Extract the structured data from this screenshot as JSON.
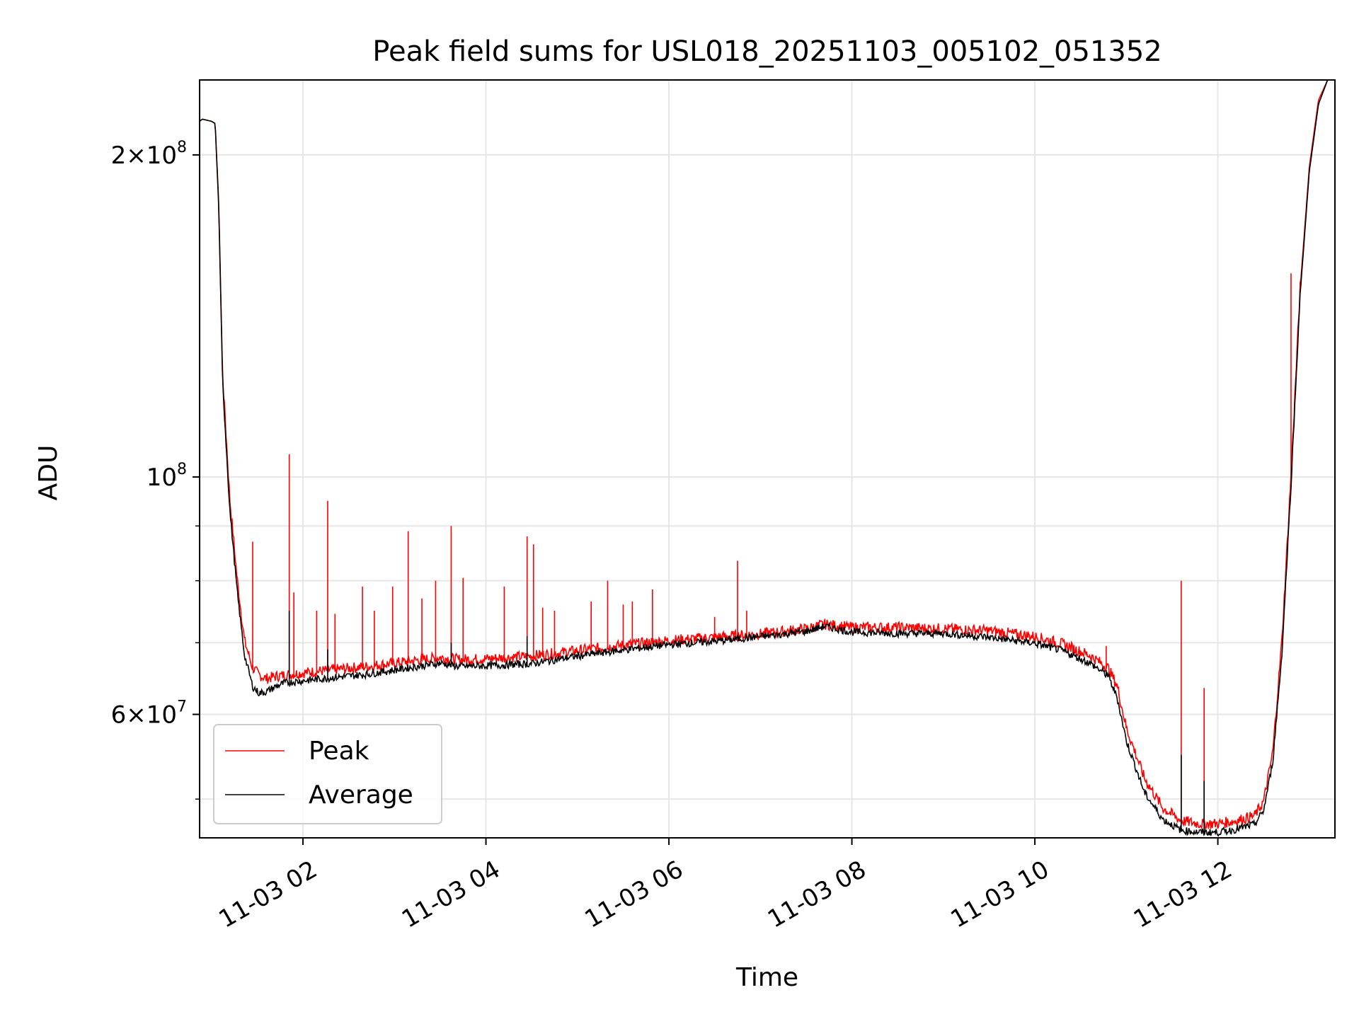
{
  "chart_data": {
    "type": "line",
    "title": "Peak field sums for USL018_20251103_005102_051352",
    "xlabel": "Time",
    "ylabel": "ADU",
    "yscale": "log",
    "xlim_hours": [
      0.87,
      13.28
    ],
    "ylim": [
      46000000,
      235000000
    ],
    "grid": true,
    "legend_location": "lower left",
    "x_ticks": [
      {
        "hour": 2,
        "label": "11-03 02"
      },
      {
        "hour": 4,
        "label": "11-03 04"
      },
      {
        "hour": 6,
        "label": "11-03 06"
      },
      {
        "hour": 8,
        "label": "11-03 08"
      },
      {
        "hour": 10,
        "label": "11-03 10"
      },
      {
        "hour": 12,
        "label": "11-03 12"
      }
    ],
    "y_major_ticks": [
      {
        "value": 200000000,
        "mantissa": "2",
        "base": "10",
        "exponent": "8"
      },
      {
        "value": 100000000,
        "mantissa": "",
        "base": "10",
        "exponent": "8"
      },
      {
        "value": 60000000,
        "mantissa": "6",
        "base": "10",
        "exponent": "7"
      }
    ],
    "y_minor_grid": [
      50000000,
      70000000,
      80000000,
      90000000
    ],
    "series": [
      {
        "name": "Peak",
        "color": "#ff0000",
        "hours": [
          0.87,
          0.9,
          1.0,
          1.04,
          1.08,
          1.12,
          1.2,
          1.28,
          1.36,
          1.45,
          1.52,
          1.6,
          1.7,
          1.8,
          2.0,
          2.3,
          2.7,
          3.0,
          3.5,
          3.7,
          4.0,
          4.5,
          5.0,
          5.5,
          6.0,
          6.5,
          7.0,
          7.5,
          7.7,
          8.0,
          8.5,
          9.0,
          9.5,
          10.0,
          10.3,
          10.6,
          10.8,
          10.9,
          11.0,
          11.2,
          11.4,
          11.6,
          11.8,
          12.0,
          12.2,
          12.4,
          12.5,
          12.6,
          12.7,
          12.8,
          12.9,
          13.0,
          13.1,
          13.2,
          13.28
        ],
        "values": [
          215000000,
          216000000,
          215000000,
          214000000,
          180000000,
          125000000,
          95000000,
          80000000,
          70000000,
          66000000,
          65000000,
          64500000,
          64800000,
          65000000,
          65300000,
          65700000,
          66200000,
          66700000,
          67500000,
          67200000,
          67300000,
          67700000,
          68500000,
          69300000,
          70000000,
          70500000,
          71000000,
          71800000,
          72500000,
          72000000,
          72000000,
          71800000,
          71500000,
          70600000,
          69500000,
          67800000,
          66000000,
          63500000,
          58000000,
          52000000,
          48800000,
          47500000,
          47200000,
          47200000,
          47500000,
          48000000,
          49500000,
          55000000,
          70000000,
          100000000,
          150000000,
          195000000,
          225000000,
          235000000,
          235000000
        ],
        "spikes": [
          {
            "hour": 1.45,
            "value": 87000000
          },
          {
            "hour": 1.85,
            "value": 105000000
          },
          {
            "hour": 1.9,
            "value": 78000000
          },
          {
            "hour": 2.15,
            "value": 75000000
          },
          {
            "hour": 2.27,
            "value": 95000000
          },
          {
            "hour": 2.35,
            "value": 74500000
          },
          {
            "hour": 2.65,
            "value": 79000000
          },
          {
            "hour": 2.78,
            "value": 75000000
          },
          {
            "hour": 2.98,
            "value": 79000000
          },
          {
            "hour": 3.15,
            "value": 89000000
          },
          {
            "hour": 3.3,
            "value": 77000000
          },
          {
            "hour": 3.45,
            "value": 80000000
          },
          {
            "hour": 3.62,
            "value": 90000000
          },
          {
            "hour": 3.75,
            "value": 80500000
          },
          {
            "hour": 4.2,
            "value": 79000000
          },
          {
            "hour": 4.45,
            "value": 88000000
          },
          {
            "hour": 4.52,
            "value": 86500000
          },
          {
            "hour": 4.62,
            "value": 75500000
          },
          {
            "hour": 4.75,
            "value": 75000000
          },
          {
            "hour": 5.15,
            "value": 76500000
          },
          {
            "hour": 5.33,
            "value": 80000000
          },
          {
            "hour": 5.5,
            "value": 76000000
          },
          {
            "hour": 5.6,
            "value": 76500000
          },
          {
            "hour": 5.82,
            "value": 78500000
          },
          {
            "hour": 6.5,
            "value": 74000000
          },
          {
            "hour": 6.75,
            "value": 83500000
          },
          {
            "hour": 6.85,
            "value": 75000000
          },
          {
            "hour": 10.78,
            "value": 69500000
          },
          {
            "hour": 11.6,
            "value": 80000000
          },
          {
            "hour": 11.85,
            "value": 63500000
          },
          {
            "hour": 12.8,
            "value": 155000000
          }
        ]
      },
      {
        "name": "Average",
        "color": "#000000",
        "hours": [
          0.87,
          0.9,
          1.0,
          1.04,
          1.08,
          1.12,
          1.2,
          1.28,
          1.36,
          1.45,
          1.52,
          1.6,
          1.7,
          1.8,
          2.0,
          2.3,
          2.7,
          3.0,
          3.5,
          3.7,
          4.0,
          4.5,
          5.0,
          5.5,
          6.0,
          6.5,
          7.0,
          7.5,
          7.7,
          8.0,
          8.5,
          9.0,
          9.5,
          10.0,
          10.3,
          10.6,
          10.8,
          10.9,
          11.0,
          11.2,
          11.4,
          11.6,
          11.8,
          12.0,
          12.2,
          12.4,
          12.5,
          12.6,
          12.7,
          12.8,
          12.9,
          13.0,
          13.1,
          13.2,
          13.28
        ],
        "values": [
          215000000,
          216000000,
          215000000,
          214000000,
          178000000,
          123000000,
          93000000,
          78000000,
          68000000,
          63500000,
          62600000,
          62800000,
          63500000,
          64000000,
          64300000,
          64700000,
          65200000,
          65800000,
          66800000,
          66300000,
          66400000,
          66700000,
          67800000,
          68700000,
          69500000,
          70000000,
          70700000,
          71500000,
          72300000,
          71400000,
          71200000,
          71200000,
          70600000,
          69700000,
          68600000,
          66800000,
          65000000,
          62000000,
          56500000,
          50500000,
          47700000,
          46600000,
          46400000,
          46400000,
          46700000,
          47200000,
          48600000,
          54000000,
          68000000,
          98000000,
          148000000,
          193000000,
          223000000,
          235000000,
          235000000
        ],
        "spikes": [
          {
            "hour": 1.85,
            "value": 75000000
          },
          {
            "hour": 2.27,
            "value": 69000000
          },
          {
            "hour": 3.62,
            "value": 70000000
          },
          {
            "hour": 4.45,
            "value": 71000000
          },
          {
            "hour": 10.78,
            "value": 66000000
          },
          {
            "hour": 11.6,
            "value": 55000000
          },
          {
            "hour": 11.85,
            "value": 52000000
          }
        ]
      }
    ]
  }
}
